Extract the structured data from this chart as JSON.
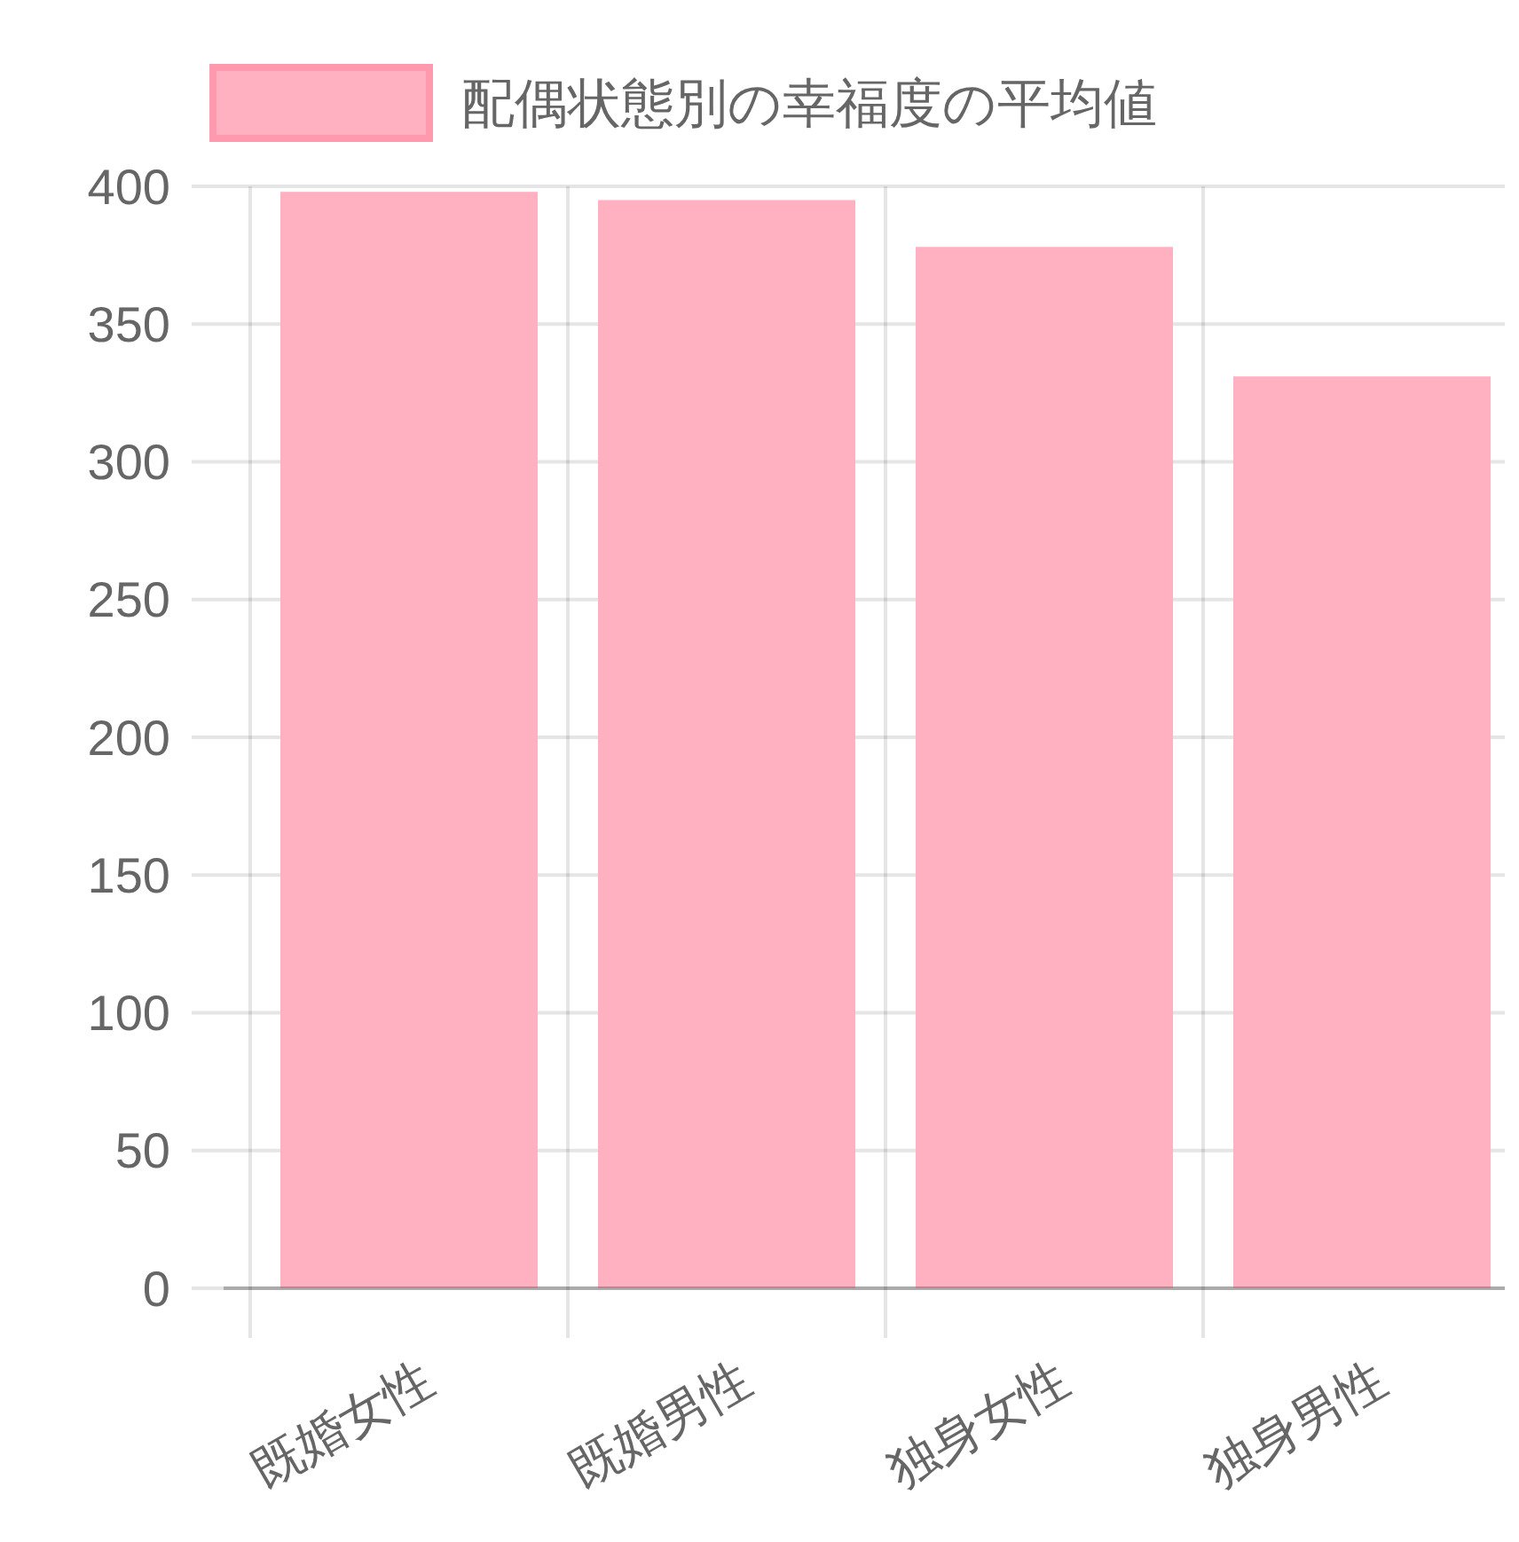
{
  "chart_data": {
    "type": "bar",
    "categories": [
      "既婚女性",
      "既婚男性",
      "独身女性",
      "独身男性"
    ],
    "series": [
      {
        "name": "配偶状態別の幸福度の平均値",
        "color": "#ffb1c1",
        "values": [
          398,
          395,
          378,
          331
        ]
      }
    ],
    "ylim": [
      0,
      400
    ],
    "yticks": [
      0,
      50,
      100,
      150,
      200,
      250,
      300,
      350,
      400
    ],
    "grid": true,
    "legend": "top"
  }
}
